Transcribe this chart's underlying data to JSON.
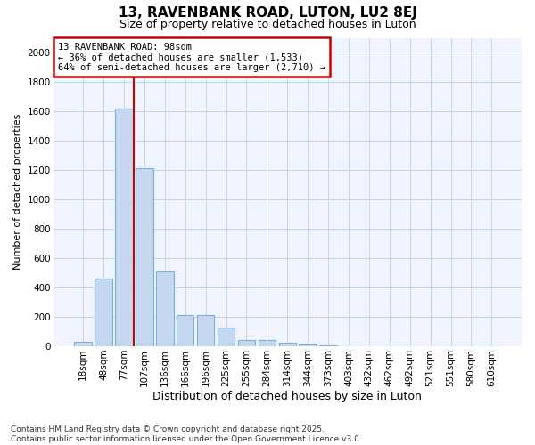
{
  "title": "13, RAVENBANK ROAD, LUTON, LU2 8EJ",
  "subtitle": "Size of property relative to detached houses in Luton",
  "xlabel": "Distribution of detached houses by size in Luton",
  "ylabel": "Number of detached properties",
  "categories": [
    "18sqm",
    "48sqm",
    "77sqm",
    "107sqm",
    "136sqm",
    "166sqm",
    "196sqm",
    "225sqm",
    "255sqm",
    "284sqm",
    "314sqm",
    "344sqm",
    "373sqm",
    "403sqm",
    "432sqm",
    "462sqm",
    "492sqm",
    "521sqm",
    "551sqm",
    "580sqm",
    "610sqm"
  ],
  "values": [
    30,
    460,
    1620,
    1210,
    510,
    215,
    215,
    125,
    45,
    40,
    25,
    10,
    5,
    0,
    0,
    0,
    0,
    0,
    0,
    0,
    0
  ],
  "bar_color": "#c5d8f0",
  "bar_edgecolor": "#7aaedb",
  "vline_x": 2.5,
  "vline_color": "#cc0000",
  "annotation_text": "13 RAVENBANK ROAD: 98sqm\n← 36% of detached houses are smaller (1,533)\n64% of semi-detached houses are larger (2,710) →",
  "annotation_box_edgecolor": "#cc0000",
  "annotation_bg": "white",
  "annotation_text_color": "black",
  "ylim_min": 0,
  "ylim_max": 2100,
  "yticks": [
    0,
    200,
    400,
    600,
    800,
    1000,
    1200,
    1400,
    1600,
    1800,
    2000
  ],
  "footnote1": "Contains HM Land Registry data © Crown copyright and database right 2025.",
  "footnote2": "Contains public sector information licensed under the Open Government Licence v3.0.",
  "background_color": "#ffffff",
  "plot_bg_color": "#f0f4ff",
  "grid_color": "#c8d4ec",
  "title_fontsize": 11,
  "subtitle_fontsize": 9,
  "ylabel_fontsize": 8,
  "xlabel_fontsize": 9,
  "tick_fontsize": 7.5,
  "footnote_fontsize": 6.5
}
